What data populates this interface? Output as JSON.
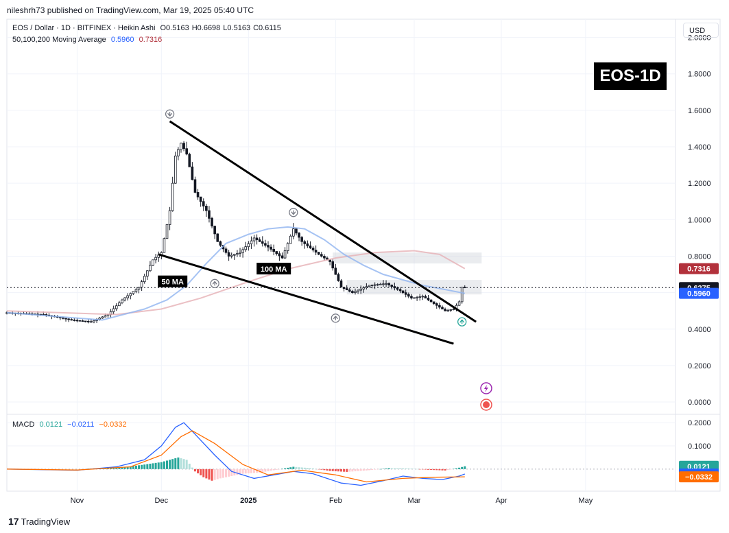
{
  "header": {
    "published": "nileshrh73 published on TradingView.com, Mar 19, 2025 05:40 UTC"
  },
  "legend": {
    "symbol": "EOS / Dollar · 1D · BITFINEX · Heikin Ashi",
    "ohlc": [
      {
        "k": "O",
        "v": "0.5163"
      },
      {
        "k": "H",
        "v": "0.6698"
      },
      {
        "k": "L",
        "v": "0.5163"
      },
      {
        "k": "C",
        "v": "0.6115"
      }
    ],
    "ma_title": "50,100,200 Moving Average",
    "ma_values": [
      "0.5960",
      "0.7316"
    ],
    "macd_title": "MACD",
    "macd_values": [
      "0.0121",
      "−0.0211",
      "−0.0332"
    ]
  },
  "currency_button": "USD",
  "badge": "EOS-1D",
  "footer": {
    "brand": "TradingView",
    "logo": "17"
  },
  "colors": {
    "up": "#131722",
    "down": "#131722",
    "ma50": "#90b4f0",
    "ma100": "#e6b0b5",
    "macd": "#2962ff",
    "signal": "#ff6d00",
    "hist_up": "#26a69a",
    "hist_down": "#ef5350",
    "price_label": "#131722",
    "ma50_label": "#2962ff",
    "ma200_label": "#b2313b"
  },
  "chart_data": [
    {
      "type": "candlestick",
      "title": "EOS / Dollar · 1D · BITFINEX · Heikin Ashi",
      "y_ticks": [
        "2.0000",
        "1.8000",
        "1.6000",
        "1.4000",
        "1.2000",
        "1.0000",
        "0.8000",
        "0.6000",
        "0.4000",
        "0.2000",
        "0.0000"
      ],
      "ylim": [
        -0.06,
        2.1
      ],
      "x_ticks": [
        "Nov",
        "Dec",
        "2025",
        "Feb",
        "Mar",
        "Apr",
        "May"
      ],
      "x_tick_dates": [
        "2024-11-01",
        "2024-12-01",
        "2025-01-01",
        "2025-02-01",
        "2025-03-01",
        "2025-04-01",
        "2025-05-01"
      ],
      "x_range": [
        "2024-10-07",
        "2025-06-02"
      ],
      "key_price": [
        [
          "2024-10-07",
          0.49
        ],
        [
          "2024-10-20",
          0.48
        ],
        [
          "2024-10-30",
          0.45
        ],
        [
          "2024-11-06",
          0.44
        ],
        [
          "2024-11-12",
          0.48
        ],
        [
          "2024-11-17",
          0.56
        ],
        [
          "2024-11-23",
          0.63
        ],
        [
          "2024-11-28",
          0.78
        ],
        [
          "2024-12-01",
          0.82
        ],
        [
          "2024-12-04",
          1.05
        ],
        [
          "2024-12-06",
          1.35
        ],
        [
          "2024-12-08",
          1.42
        ],
        [
          "2024-12-10",
          1.36
        ],
        [
          "2024-12-13",
          1.15
        ],
        [
          "2024-12-17",
          1.05
        ],
        [
          "2024-12-21",
          0.88
        ],
        [
          "2024-12-25",
          0.8
        ],
        [
          "2024-12-29",
          0.82
        ],
        [
          "2025-01-03",
          0.9
        ],
        [
          "2025-01-08",
          0.85
        ],
        [
          "2025-01-13",
          0.79
        ],
        [
          "2025-01-17",
          0.95
        ],
        [
          "2025-01-20",
          0.88
        ],
        [
          "2025-01-26",
          0.81
        ],
        [
          "2025-01-30",
          0.77
        ],
        [
          "2025-02-03",
          0.63
        ],
        [
          "2025-02-07",
          0.6
        ],
        [
          "2025-02-13",
          0.64
        ],
        [
          "2025-02-19",
          0.65
        ],
        [
          "2025-02-24",
          0.61
        ],
        [
          "2025-02-28",
          0.57
        ],
        [
          "2025-03-04",
          0.58
        ],
        [
          "2025-03-08",
          0.54
        ],
        [
          "2025-03-12",
          0.5
        ],
        [
          "2025-03-15",
          0.51
        ],
        [
          "2025-03-17",
          0.55
        ],
        [
          "2025-03-18",
          0.63
        ],
        [
          "2025-03-19",
          0.6275
        ]
      ],
      "ma50": [
        [
          "2024-10-07",
          0.49
        ],
        [
          "2024-11-10",
          0.45
        ],
        [
          "2024-11-25",
          0.51
        ],
        [
          "2024-12-03",
          0.56
        ],
        [
          "2024-12-10",
          0.64
        ],
        [
          "2024-12-17",
          0.76
        ],
        [
          "2024-12-24",
          0.87
        ],
        [
          "2025-01-01",
          0.92
        ],
        [
          "2025-01-08",
          0.95
        ],
        [
          "2025-01-15",
          0.96
        ],
        [
          "2025-01-21",
          0.95
        ],
        [
          "2025-01-28",
          0.89
        ],
        [
          "2025-02-04",
          0.81
        ],
        [
          "2025-02-11",
          0.75
        ],
        [
          "2025-02-18",
          0.7
        ],
        [
          "2025-02-25",
          0.67
        ],
        [
          "2025-03-04",
          0.64
        ],
        [
          "2025-03-11",
          0.62
        ],
        [
          "2025-03-19",
          0.596
        ]
      ],
      "ma100": [
        [
          "2024-10-07",
          0.5
        ],
        [
          "2024-11-15",
          0.48
        ],
        [
          "2024-12-01",
          0.51
        ],
        [
          "2024-12-15",
          0.57
        ],
        [
          "2025-01-01",
          0.66
        ],
        [
          "2025-01-15",
          0.73
        ],
        [
          "2025-02-01",
          0.79
        ],
        [
          "2025-02-15",
          0.82
        ],
        [
          "2025-03-01",
          0.83
        ],
        [
          "2025-03-10",
          0.81
        ],
        [
          "2025-03-19",
          0.7316
        ]
      ],
      "trendlines": [
        {
          "from": [
            "2024-12-04",
            1.54
          ],
          "to": [
            "2025-03-23",
            0.44
          ]
        },
        {
          "from": [
            "2024-11-30",
            0.81
          ],
          "to": [
            "2025-03-15",
            0.32
          ]
        }
      ],
      "zones": [
        {
          "from": "2025-01-31",
          "to": "2025-03-25",
          "low": 0.76,
          "high": 0.82
        },
        {
          "from": "2025-02-05",
          "to": "2025-03-25",
          "low": 0.59,
          "high": 0.67
        }
      ],
      "current_price": "0.6275",
      "annotations": [
        {
          "text": "50 MA",
          "date": "2024-12-05",
          "price": 0.66
        },
        {
          "text": "100 MA",
          "date": "2025-01-10",
          "price": 0.73
        }
      ],
      "price_labels": [
        {
          "value": "0.7316",
          "price": 0.7316,
          "color": "#b2313b"
        },
        {
          "value": "0.6275",
          "price": 0.6275,
          "color": "#131722"
        },
        {
          "value": "0.5960",
          "price": 0.596,
          "color": "#2962ff"
        }
      ],
      "markers": [
        {
          "date": "2024-12-04",
          "price": 1.58,
          "dir": "down"
        },
        {
          "date": "2025-01-17",
          "price": 1.04,
          "dir": "down"
        },
        {
          "date": "2024-12-20",
          "price": 0.65,
          "dir": "up"
        },
        {
          "date": "2025-02-01",
          "price": 0.46,
          "dir": "up"
        },
        {
          "date": "2025-03-18",
          "price": 0.44,
          "dir": "up"
        }
      ]
    },
    {
      "type": "line",
      "title": "MACD",
      "y_ticks": [
        "0.2000",
        "0.1000"
      ],
      "ylim": [
        -0.095,
        0.23
      ],
      "macd": [
        [
          "2024-10-07",
          0.0
        ],
        [
          "2024-11-01",
          -0.005
        ],
        [
          "2024-11-15",
          0.01
        ],
        [
          "2024-11-25",
          0.04
        ],
        [
          "2024-12-01",
          0.1
        ],
        [
          "2024-12-06",
          0.18
        ],
        [
          "2024-12-09",
          0.2
        ],
        [
          "2024-12-13",
          0.15
        ],
        [
          "2024-12-20",
          0.06
        ],
        [
          "2024-12-26",
          -0.01
        ],
        [
          "2025-01-03",
          -0.04
        ],
        [
          "2025-01-10",
          -0.025
        ],
        [
          "2025-01-17",
          -0.01
        ],
        [
          "2025-01-24",
          -0.02
        ],
        [
          "2025-02-03",
          -0.06
        ],
        [
          "2025-02-10",
          -0.07
        ],
        [
          "2025-02-18",
          -0.05
        ],
        [
          "2025-02-25",
          -0.03
        ],
        [
          "2025-03-04",
          -0.04
        ],
        [
          "2025-03-11",
          -0.045
        ],
        [
          "2025-03-17",
          -0.03
        ],
        [
          "2025-03-19",
          -0.0211
        ]
      ],
      "signal": [
        [
          "2024-10-07",
          0.0
        ],
        [
          "2024-11-01",
          -0.004
        ],
        [
          "2024-11-20",
          0.01
        ],
        [
          "2024-12-01",
          0.06
        ],
        [
          "2024-12-08",
          0.14
        ],
        [
          "2024-12-12",
          0.165
        ],
        [
          "2024-12-20",
          0.11
        ],
        [
          "2024-12-30",
          0.02
        ],
        [
          "2025-01-08",
          -0.025
        ],
        [
          "2025-01-20",
          -0.005
        ],
        [
          "2025-02-01",
          -0.025
        ],
        [
          "2025-02-12",
          -0.055
        ],
        [
          "2025-02-25",
          -0.04
        ],
        [
          "2025-03-08",
          -0.035
        ],
        [
          "2025-03-19",
          -0.0332
        ]
      ],
      "histogram": [
        [
          "2024-11-05",
          0.002
        ],
        [
          "2024-11-12",
          0.006
        ],
        [
          "2024-11-19",
          0.01
        ],
        [
          "2024-11-24",
          0.018
        ],
        [
          "2024-11-28",
          0.025
        ],
        [
          "2024-12-01",
          0.03
        ],
        [
          "2024-12-04",
          0.04
        ],
        [
          "2024-12-07",
          0.05
        ],
        [
          "2024-12-10",
          0.04
        ],
        [
          "2024-12-13",
          -0.01
        ],
        [
          "2024-12-16",
          -0.035
        ],
        [
          "2024-12-19",
          -0.05
        ],
        [
          "2024-12-22",
          -0.04
        ],
        [
          "2024-12-26",
          -0.03
        ],
        [
          "2024-12-30",
          -0.02
        ],
        [
          "2025-01-05",
          -0.015
        ],
        [
          "2025-01-10",
          -0.005
        ],
        [
          "2025-01-17",
          0.01
        ],
        [
          "2025-01-24",
          0.003
        ],
        [
          "2025-01-30",
          -0.008
        ],
        [
          "2025-02-05",
          -0.012
        ],
        [
          "2025-02-12",
          -0.006
        ],
        [
          "2025-02-20",
          0.004
        ],
        [
          "2025-02-27",
          0.003
        ],
        [
          "2025-03-06",
          -0.003
        ],
        [
          "2025-03-12",
          -0.006
        ],
        [
          "2025-03-17",
          0.006
        ],
        [
          "2025-03-19",
          0.0121
        ]
      ],
      "price_labels": [
        {
          "value": "0.0121",
          "price": 0.0121,
          "color": "#26a69a"
        },
        {
          "value": "−0.0211",
          "price": -0.0211,
          "color": "#2962ff"
        },
        {
          "value": "−0.0332",
          "price": -0.0332,
          "color": "#ff6d00"
        }
      ]
    }
  ]
}
